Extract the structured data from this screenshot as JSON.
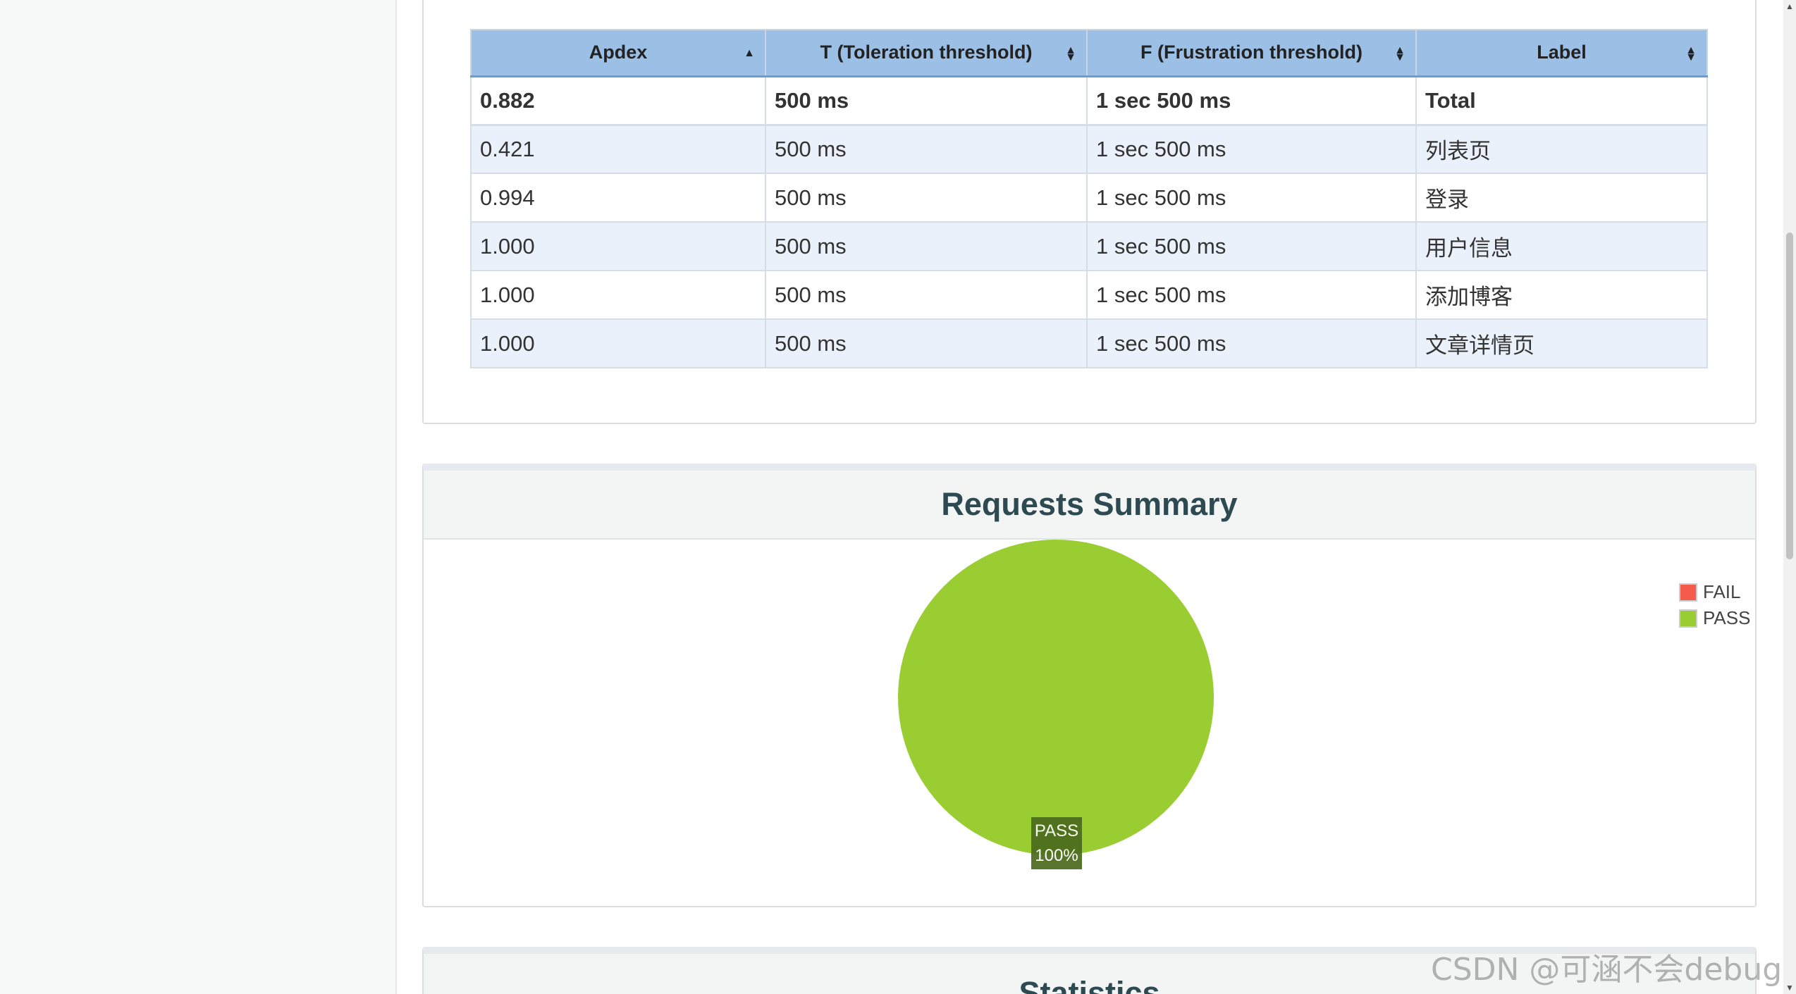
{
  "apdex_table": {
    "headers": [
      "Apdex",
      "T (Toleration threshold)",
      "F (Frustration threshold)",
      "Label"
    ],
    "rows": [
      [
        "0.882",
        "500 ms",
        "1 sec 500 ms",
        "Total"
      ],
      [
        "0.421",
        "500 ms",
        "1 sec 500 ms",
        "列表页"
      ],
      [
        "0.994",
        "500 ms",
        "1 sec 500 ms",
        "登录"
      ],
      [
        "1.000",
        "500 ms",
        "1 sec 500 ms",
        "用户信息"
      ],
      [
        "1.000",
        "500 ms",
        "1 sec 500 ms",
        "添加博客"
      ],
      [
        "1.000",
        "500 ms",
        "1 sec 500 ms",
        "文章详情页"
      ]
    ]
  },
  "requests_summary": {
    "title": "Requests Summary",
    "legend": [
      {
        "label": "FAIL",
        "color": "#f45b4b"
      },
      {
        "label": "PASS",
        "color": "#9acd32"
      }
    ]
  },
  "chart_data": {
    "type": "pie",
    "categories": [
      "FAIL",
      "PASS"
    ],
    "values": [
      0,
      100
    ],
    "colors": [
      "#f45b4b",
      "#9acd32"
    ],
    "slice_label": {
      "name": "PASS",
      "percent": "100%"
    },
    "legend_position": "top-right"
  },
  "statistics": {
    "title": "Statistics"
  },
  "watermark": "CSDN @可涵不会debug",
  "colors": {
    "header_bg": "#9bbfe5",
    "pass": "#9acd32",
    "fail": "#f45b4b",
    "title": "#2d4a52"
  }
}
